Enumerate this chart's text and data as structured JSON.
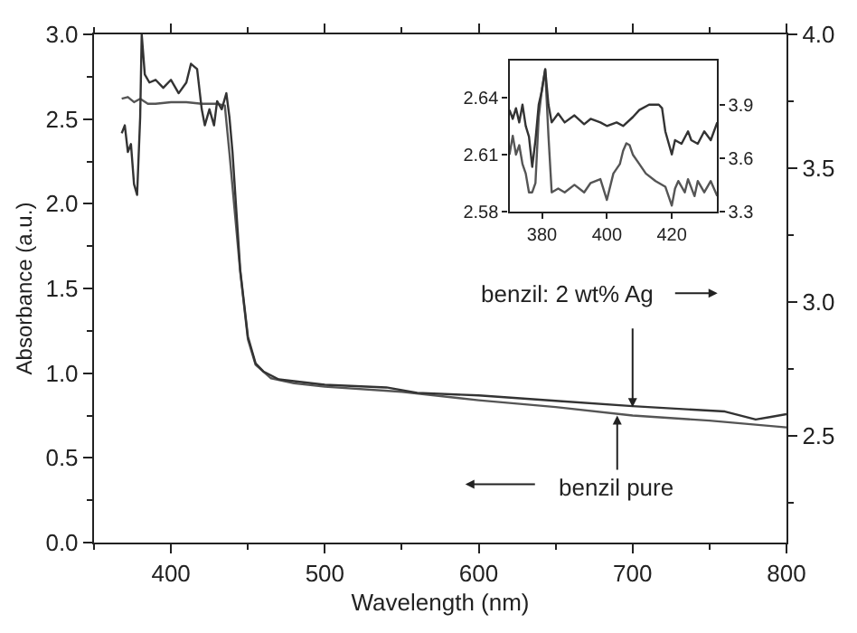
{
  "chart_data": [
    {
      "type": "line",
      "xlabel": "Wavelength (nm)",
      "ylabel": "Absorbance (a.u.)",
      "xlim": [
        350,
        800
      ],
      "xticks": [
        400,
        500,
        600,
        700,
        800
      ],
      "ylim": [
        0,
        3
      ],
      "yticks": [
        {
          "value": 0,
          "label": "0.0"
        },
        {
          "value": 0.5,
          "label": "0.5"
        },
        {
          "value": 1,
          "label": "1.0"
        },
        {
          "value": 1.5,
          "label": "1.5"
        },
        {
          "value": 2,
          "label": "2.0"
        },
        {
          "value": 2.5,
          "label": "2.5"
        },
        {
          "value": 3,
          "label": "3.0"
        }
      ],
      "y2lim": [
        2.1,
        4.0
      ],
      "y2ticks": [
        {
          "value": 2.5,
          "label": "2.5"
        },
        {
          "value": 3,
          "label": "3.0"
        },
        {
          "value": 3.5,
          "label": "3.5"
        },
        {
          "value": 4,
          "label": "4.0"
        }
      ],
      "marker": "none",
      "line_style": "solid",
      "series": [
        {
          "color": "#555555",
          "x": [
            368,
            372,
            376,
            380,
            385,
            390,
            400,
            410,
            420,
            430,
            435,
            438,
            441,
            445,
            450,
            455,
            465,
            480,
            500,
            550,
            600,
            650,
            700,
            750,
            800
          ],
          "values": [
            2.62,
            2.63,
            2.6,
            2.62,
            2.59,
            2.59,
            2.6,
            2.6,
            2.59,
            2.59,
            2.58,
            2.3,
            2.0,
            1.6,
            1.2,
            1.05,
            0.97,
            0.94,
            0.92,
            0.89,
            0.84,
            0.8,
            0.75,
            0.72,
            0.68
          ]
        },
        {
          "color": "#333333",
          "axis": "y2",
          "x": [
            368,
            370,
            372,
            374,
            376,
            378,
            380,
            381,
            383,
            386,
            390,
            395,
            400,
            405,
            410,
            413,
            417,
            420,
            422,
            425,
            428,
            430,
            433,
            436,
            438,
            440,
            445,
            450,
            455,
            460,
            470,
            500,
            540,
            560,
            600,
            650,
            700,
            760,
            780,
            790,
            800
          ],
          "values": [
            3.63,
            3.66,
            3.56,
            3.59,
            3.44,
            3.4,
            3.69,
            4.0,
            3.85,
            3.82,
            3.83,
            3.8,
            3.83,
            3.78,
            3.82,
            3.89,
            3.87,
            3.72,
            3.66,
            3.72,
            3.66,
            3.75,
            3.72,
            3.78,
            3.69,
            3.56,
            3.12,
            2.87,
            2.77,
            2.74,
            2.71,
            2.69,
            2.68,
            2.66,
            2.65,
            2.63,
            2.61,
            2.59,
            2.56,
            2.57,
            2.58
          ]
        }
      ],
      "annotations": [
        {
          "text": "benzil: 2 wt% Ag",
          "x": 700,
          "y": 0.8
        },
        {
          "text": "benzil pure",
          "x": 690,
          "y": 0.75
        }
      ]
    },
    {
      "type": "line",
      "xlim": [
        370,
        434
      ],
      "xticks": [
        380,
        400,
        420
      ],
      "ylim": [
        2.58,
        2.66
      ],
      "yticks": [
        2.58,
        2.61,
        2.64
      ],
      "y2lim": [
        3.3,
        4.15
      ],
      "y2ticks": [
        {
          "value": 3.3,
          "label": "3.3"
        },
        {
          "value": 3.6,
          "label": "3.6"
        },
        {
          "value": 3.9,
          "label": "3.9"
        }
      ],
      "marker": "none",
      "line_style": "solid",
      "series": [
        {
          "color": "#555555",
          "x": [
            370,
            371,
            372,
            373,
            374,
            375,
            376,
            377,
            378,
            379,
            380,
            381,
            382,
            383,
            385,
            387,
            390,
            393,
            395,
            398,
            400,
            402,
            404,
            405,
            406,
            407,
            408,
            410,
            412,
            415,
            418,
            420,
            421,
            422,
            424,
            425,
            427,
            428,
            430,
            432,
            434
          ],
          "values": [
            2.61,
            2.62,
            2.61,
            2.615,
            2.605,
            2.6,
            2.59,
            2.59,
            2.595,
            2.63,
            2.645,
            2.655,
            2.62,
            2.59,
            2.592,
            2.59,
            2.594,
            2.59,
            2.595,
            2.597,
            2.586,
            2.6,
            2.605,
            2.612,
            2.616,
            2.615,
            2.61,
            2.605,
            2.6,
            2.596,
            2.593,
            2.583,
            2.592,
            2.596,
            2.59,
            2.597,
            2.588,
            2.596,
            2.59,
            2.596,
            2.588
          ]
        },
        {
          "color": "#333333",
          "axis": "y2",
          "x": [
            370,
            371,
            372,
            373,
            374,
            375,
            376,
            377,
            378,
            379,
            380,
            381,
            382,
            383,
            385,
            387,
            390,
            393,
            395,
            398,
            400,
            403,
            405,
            408,
            410,
            413,
            416,
            417,
            418,
            420,
            421,
            423,
            425,
            426,
            428,
            430,
            432,
            434
          ],
          "values": [
            3.87,
            3.82,
            3.88,
            3.8,
            3.9,
            3.78,
            3.72,
            3.55,
            3.7,
            3.9,
            3.98,
            4.1,
            3.9,
            3.8,
            3.85,
            3.8,
            3.84,
            3.79,
            3.82,
            3.8,
            3.78,
            3.8,
            3.78,
            3.83,
            3.87,
            3.9,
            3.9,
            3.88,
            3.75,
            3.62,
            3.7,
            3.68,
            3.75,
            3.7,
            3.68,
            3.75,
            3.7,
            3.8
          ]
        }
      ]
    }
  ]
}
